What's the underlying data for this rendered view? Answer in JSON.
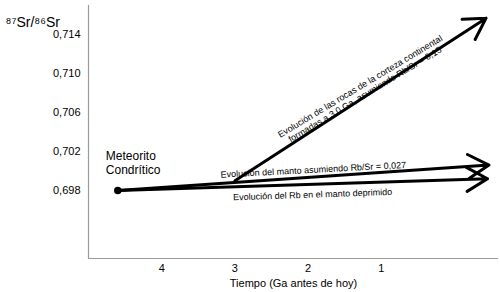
{
  "chart_data": {
    "type": "line",
    "ylabel": "⁸⁷Sr/⁸⁶Sr",
    "xlabel": "Tiempo (Ga antes de hoy)",
    "xlim": [
      5,
      -0.6
    ],
    "xticks": [
      4,
      3,
      2,
      1
    ],
    "ylim": [
      0.691,
      0.717
    ],
    "yticks": [
      {
        "value": 0.698,
        "label": "0,698"
      },
      {
        "value": 0.702,
        "label": "0,702"
      },
      {
        "value": 0.706,
        "label": "0,706"
      },
      {
        "value": 0.71,
        "label": "0,710"
      },
      {
        "value": 0.714,
        "label": "0,714"
      }
    ],
    "grid": false,
    "series": [
      {
        "name": "Evolución de las rocas de la corteza continental\nformadas a 3.0 Ga, asumiendo Rb/Sr = 0,15",
        "color": "#000000",
        "x": [
          3,
          -0.43
        ],
        "values": [
          0.699,
          0.7157
        ]
      },
      {
        "name": "Evolución del manto asumiendo Rb/Sr = 0,027",
        "color": "#000000",
        "x": [
          4.6,
          -0.47
        ],
        "values": [
          0.698,
          0.7006
        ]
      },
      {
        "name": "Evolución del Rb en el manto deprimido",
        "color": "#000000",
        "x": [
          4.6,
          -0.45
        ],
        "values": [
          0.698,
          0.6992
        ]
      }
    ],
    "points": [
      {
        "label": "Meteorito\nCondrítico",
        "x": 4.6,
        "y": 0.698,
        "color": "#000000"
      }
    ]
  }
}
